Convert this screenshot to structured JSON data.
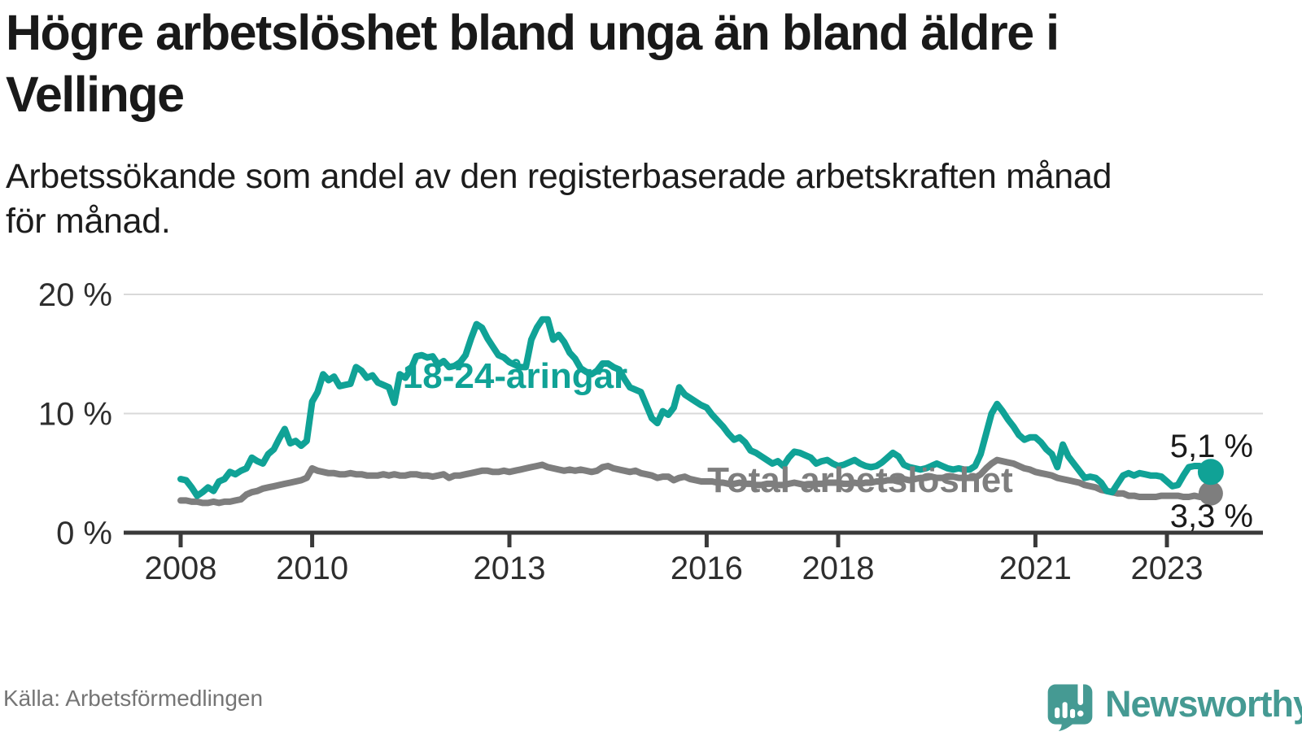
{
  "header": {
    "title_line1": "Högre arbetslöshet bland unga än bland äldre i",
    "title_line2": "Vellinge",
    "subtitle_line1": "Arbetssökande som andel av den registerbaserade arbetskraften månad",
    "subtitle_line2": "för månad."
  },
  "chart_data": {
    "type": "line",
    "title": "Högre arbetslöshet bland unga än bland äldre i Vellinge",
    "subtitle": "Arbetssökande som andel av den registerbaserade arbetskraften månad för månad.",
    "unit": "%",
    "x_start": "2008-01",
    "x_end": "2023-09",
    "x_frequency": "monthly",
    "ylim": [
      0,
      20
    ],
    "y_ticks": [
      0,
      10,
      20
    ],
    "y_tick_labels": [
      "0 %",
      "10 %",
      "20 %"
    ],
    "x_tick_years": [
      2008,
      2010,
      2013,
      2016,
      2018,
      2021,
      2023
    ],
    "x_tick_labels": [
      "2008",
      "2010",
      "2013",
      "2016",
      "2018",
      "2021",
      "2023"
    ],
    "grid": "horizontal",
    "legend_position": "inline-labels",
    "series": [
      {
        "name": "18-24-åringar",
        "color": "#10a296",
        "end_value": 5.1,
        "end_label": "5,1 %",
        "values": [
          4.5,
          4.4,
          3.8,
          3.1,
          3.4,
          3.8,
          3.5,
          4.3,
          4.5,
          5.1,
          4.9,
          5.2,
          5.4,
          6.3,
          6.0,
          5.8,
          6.6,
          7.0,
          7.9,
          8.7,
          7.5,
          7.7,
          7.3,
          7.7,
          11.0,
          11.8,
          13.3,
          12.8,
          13.1,
          12.3,
          12.4,
          12.5,
          13.9,
          13.6,
          13.0,
          13.2,
          12.6,
          12.4,
          12.2,
          10.9,
          13.3,
          13.0,
          13.7,
          14.8,
          14.9,
          14.7,
          14.8,
          14.1,
          14.4,
          13.9,
          14.0,
          14.3,
          14.9,
          16.3,
          17.5,
          17.2,
          16.3,
          15.6,
          14.9,
          14.7,
          14.3,
          14.1,
          13.9,
          13.9,
          16.2,
          17.2,
          17.9,
          17.9,
          16.2,
          16.6,
          16.0,
          15.1,
          14.6,
          13.8,
          13.5,
          13.3,
          13.6,
          14.2,
          14.2,
          13.9,
          13.7,
          12.9,
          12.2,
          12.0,
          11.8,
          10.7,
          9.6,
          9.2,
          10.2,
          9.9,
          10.5,
          12.2,
          11.6,
          11.3,
          11.0,
          10.7,
          10.5,
          9.9,
          9.4,
          8.9,
          8.3,
          7.8,
          8.0,
          7.6,
          6.9,
          6.7,
          6.4,
          6.1,
          5.8,
          6.0,
          5.6,
          6.3,
          6.8,
          6.7,
          6.5,
          6.3,
          5.8,
          6.0,
          6.1,
          5.8,
          5.6,
          5.7,
          5.9,
          6.1,
          5.8,
          5.6,
          5.5,
          5.6,
          5.9,
          6.3,
          6.7,
          6.4,
          5.7,
          5.5,
          5.4,
          5.3,
          5.4,
          5.6,
          5.8,
          5.6,
          5.4,
          5.3,
          5.4,
          5.3,
          5.3,
          5.6,
          6.6,
          8.3,
          10.0,
          10.8,
          10.2,
          9.5,
          8.9,
          8.2,
          7.8,
          8.0,
          8.0,
          7.6,
          7.0,
          6.6,
          5.5,
          7.4,
          6.4,
          5.8,
          5.2,
          4.6,
          4.7,
          4.6,
          4.2,
          3.5,
          3.4,
          4.1,
          4.8,
          5.0,
          4.8,
          5.0,
          4.9,
          4.8,
          4.8,
          4.7,
          4.3,
          3.9,
          4.0,
          4.8,
          5.5,
          5.6,
          5.6,
          5.1,
          5.1
        ]
      },
      {
        "name": "Total arbetslöshet",
        "color": "#7e7e7e",
        "end_value": 3.3,
        "end_label": "3,3 %",
        "values": [
          2.7,
          2.7,
          2.6,
          2.6,
          2.5,
          2.5,
          2.6,
          2.5,
          2.6,
          2.6,
          2.7,
          2.8,
          3.2,
          3.4,
          3.5,
          3.7,
          3.8,
          3.9,
          4.0,
          4.1,
          4.2,
          4.3,
          4.4,
          4.6,
          5.4,
          5.2,
          5.1,
          5.0,
          5.0,
          4.9,
          4.9,
          5.0,
          4.9,
          4.9,
          4.8,
          4.8,
          4.8,
          4.9,
          4.8,
          4.9,
          4.8,
          4.8,
          4.9,
          4.9,
          4.8,
          4.8,
          4.7,
          4.8,
          4.9,
          4.6,
          4.8,
          4.8,
          4.9,
          5.0,
          5.1,
          5.2,
          5.2,
          5.1,
          5.1,
          5.2,
          5.1,
          5.2,
          5.3,
          5.4,
          5.5,
          5.6,
          5.7,
          5.5,
          5.4,
          5.3,
          5.2,
          5.3,
          5.2,
          5.3,
          5.2,
          5.1,
          5.2,
          5.5,
          5.6,
          5.4,
          5.3,
          5.2,
          5.1,
          5.2,
          5.0,
          4.9,
          4.8,
          4.6,
          4.7,
          4.7,
          4.4,
          4.6,
          4.7,
          4.5,
          4.4,
          4.3,
          4.3,
          4.3,
          4.2,
          4.2,
          4.1,
          4.1,
          4.2,
          4.1,
          4.1,
          4.0,
          4.0,
          4.1,
          4.1,
          4.0,
          4.0,
          4.1,
          4.2,
          4.1,
          4.0,
          4.0,
          4.1,
          4.1,
          4.2,
          4.2,
          4.2,
          4.1,
          4.1,
          4.2,
          4.1,
          4.2,
          4.2,
          4.3,
          4.3,
          4.4,
          4.4,
          4.5,
          4.5,
          4.4,
          4.5,
          4.6,
          4.6,
          4.7,
          4.6,
          4.6,
          4.7,
          4.7,
          4.6,
          4.6,
          4.6,
          4.6,
          4.9,
          5.4,
          5.8,
          6.1,
          6.0,
          5.9,
          5.8,
          5.6,
          5.4,
          5.3,
          5.1,
          5.0,
          4.9,
          4.8,
          4.6,
          4.5,
          4.4,
          4.3,
          4.2,
          4.0,
          3.9,
          3.8,
          3.6,
          3.5,
          3.4,
          3.3,
          3.3,
          3.1,
          3.1,
          3.0,
          3.0,
          3.0,
          3.0,
          3.1,
          3.1,
          3.1,
          3.1,
          3.0,
          3.0,
          3.1,
          3.0,
          3.1,
          3.3
        ]
      }
    ],
    "colors": {
      "youth_line": "#10a296",
      "total_line": "#7e7e7e",
      "axis": "#3a3a3a",
      "gridline": "#d9d9d9",
      "text": "#191919"
    }
  },
  "footer": {
    "source": "Källa: Arbetsförmedlingen",
    "logo_text": "Newsworthy",
    "logo_color": "#459a93"
  }
}
